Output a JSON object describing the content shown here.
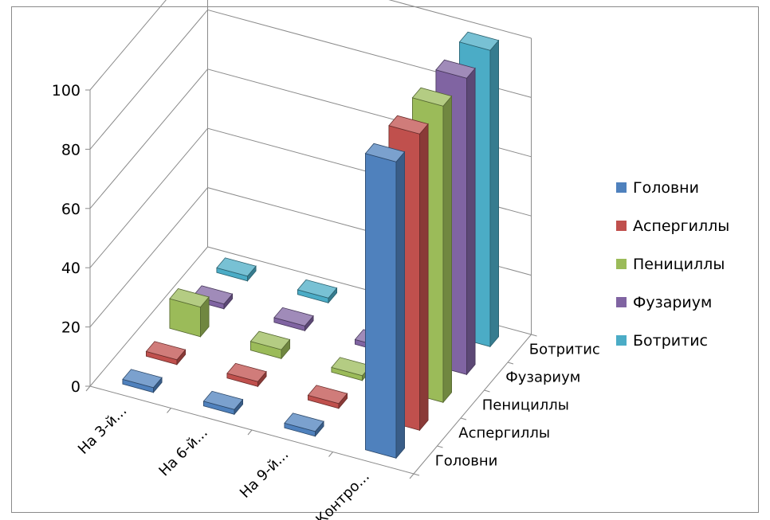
{
  "chart_data": {
    "type": "bar",
    "categories": [
      "На 3-й...",
      "На 6-й...",
      "На 9-й...",
      "Контро..."
    ],
    "series": [
      {
        "name": "Головни",
        "color": "#4f81bd",
        "values": [
          0,
          0,
          0,
          100
        ]
      },
      {
        "name": "Аспергиллы",
        "color": "#c0504d",
        "values": [
          0,
          0,
          0,
          100
        ]
      },
      {
        "name": "Пенициллы",
        "color": "#9bbb59",
        "values": [
          10,
          3,
          0,
          100
        ]
      },
      {
        "name": "Фузариум",
        "color": "#8064a2",
        "values": [
          0,
          0,
          0,
          100
        ]
      },
      {
        "name": "Ботритис",
        "color": "#4bacc6",
        "values": [
          0,
          0,
          0,
          100
        ]
      }
    ],
    "yticks": [
      "0",
      "20",
      "40",
      "60",
      "80",
      "100"
    ],
    "ylim": [
      0,
      100
    ],
    "legend_position": "right",
    "grid": true
  }
}
